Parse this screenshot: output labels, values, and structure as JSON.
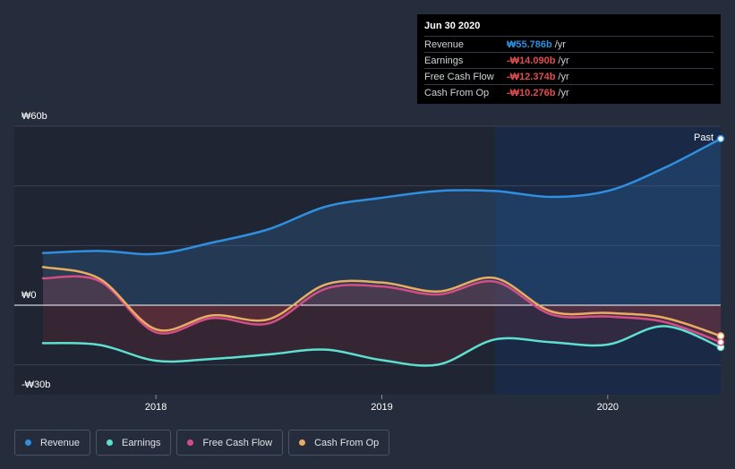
{
  "tooltip": {
    "date": "Jun 30 2020",
    "rows": [
      {
        "label": "Revenue",
        "value": "₩55.786b",
        "unit": "/yr",
        "color": "#2f8fe0"
      },
      {
        "label": "Earnings",
        "value": "-₩14.090b",
        "unit": "/yr",
        "color": "#e24d4d"
      },
      {
        "label": "Free Cash Flow",
        "value": "-₩12.374b",
        "unit": "/yr",
        "color": "#e24d4d"
      },
      {
        "label": "Cash From Op",
        "value": "-₩10.276b",
        "unit": "/yr",
        "color": "#e24d4d"
      }
    ]
  },
  "past_label": "Past",
  "legend": [
    {
      "label": "Revenue",
      "color": "#2f8fe0"
    },
    {
      "label": "Earnings",
      "color": "#5ee0d0"
    },
    {
      "label": "Free Cash Flow",
      "color": "#d34e86"
    },
    {
      "label": "Cash From Op",
      "color": "#e8ac62"
    }
  ],
  "chart_data": {
    "type": "line",
    "ylim": [
      -30,
      60
    ],
    "y_tick_labels": [
      {
        "value": 60,
        "label": "₩60b"
      },
      {
        "value": 0,
        "label": "₩0"
      },
      {
        "value": -30,
        "label": "-₩30b"
      }
    ],
    "x_range": [
      2017.5,
      2020.5
    ],
    "x_tick_labels": [
      {
        "value": 2018,
        "label": "2018"
      },
      {
        "value": 2019,
        "label": "2019"
      },
      {
        "value": 2020,
        "label": "2020"
      }
    ],
    "past_start": 2019.5,
    "series": [
      {
        "name": "Revenue",
        "color": "#2f8fe0",
        "x": [
          2017.5,
          2017.75,
          2018.0,
          2018.25,
          2018.5,
          2018.75,
          2019.0,
          2019.25,
          2019.5,
          2019.75,
          2020.0,
          2020.25,
          2020.5
        ],
        "y": [
          17.5,
          18.2,
          17.2,
          21.0,
          25.5,
          33.0,
          36.0,
          38.3,
          38.3,
          36.3,
          38.3,
          46.0,
          55.8
        ]
      },
      {
        "name": "Earnings",
        "color": "#5ee0d0",
        "x": [
          2017.5,
          2017.75,
          2018.0,
          2018.25,
          2018.5,
          2018.75,
          2019.0,
          2019.25,
          2019.5,
          2019.75,
          2020.0,
          2020.25,
          2020.5
        ],
        "y": [
          -12.7,
          -13.3,
          -18.6,
          -18.0,
          -16.5,
          -14.9,
          -18.4,
          -19.9,
          -11.5,
          -12.4,
          -13.2,
          -7.0,
          -14.1
        ]
      },
      {
        "name": "Free Cash Flow",
        "color": "#d34e86",
        "x": [
          2017.5,
          2017.75,
          2018.0,
          2018.25,
          2018.5,
          2018.75,
          2019.0,
          2019.25,
          2019.5,
          2019.75,
          2020.0,
          2020.25,
          2020.5
        ],
        "y": [
          9.0,
          8.1,
          -9.1,
          -4.3,
          -6.1,
          5.5,
          6.3,
          3.6,
          7.9,
          -3.1,
          -3.8,
          -5.6,
          -12.4
        ]
      },
      {
        "name": "Cash From Op",
        "color": "#e8ac62",
        "x": [
          2017.5,
          2017.75,
          2018.0,
          2018.25,
          2018.5,
          2018.75,
          2019.0,
          2019.25,
          2019.5,
          2019.75,
          2020.0,
          2020.25,
          2020.5
        ],
        "y": [
          12.8,
          8.9,
          -8.1,
          -3.4,
          -4.7,
          6.9,
          7.6,
          4.6,
          9.1,
          -2.1,
          -2.6,
          -4.2,
          -10.3
        ]
      }
    ]
  }
}
